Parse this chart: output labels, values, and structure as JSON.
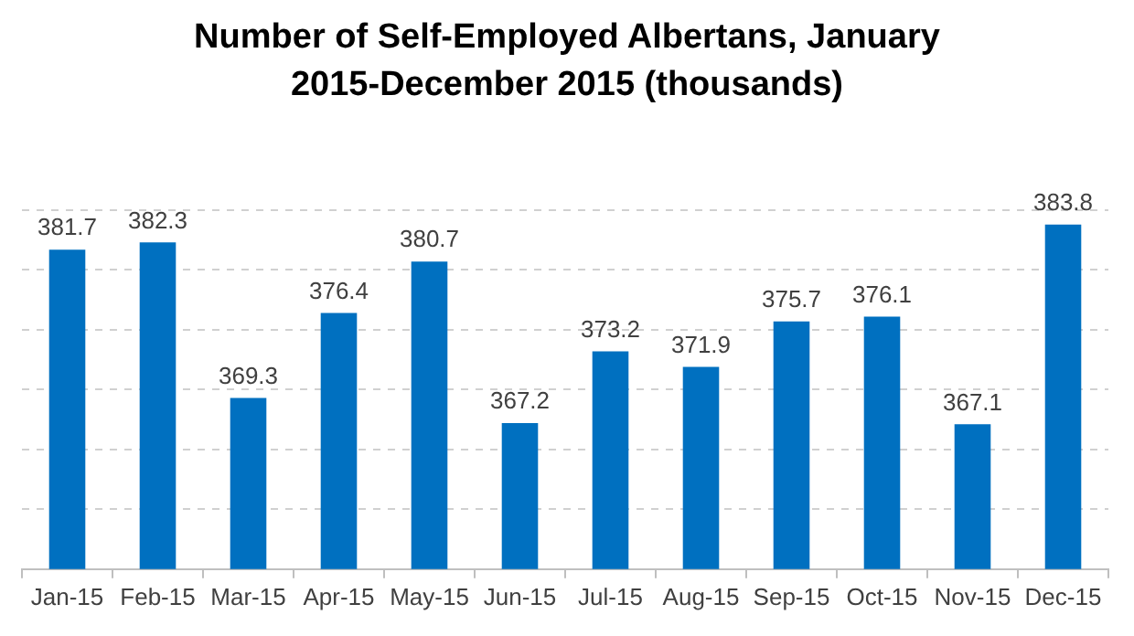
{
  "chart_data": {
    "type": "bar",
    "title": "Number of Self-Employed Albertans, January 2015-December 2015 (thousands)",
    "categories": [
      "Jan-15",
      "Feb-15",
      "Mar-15",
      "Apr-15",
      "May-15",
      "Jun-15",
      "Jul-15",
      "Aug-15",
      "Sep-15",
      "Oct-15",
      "Nov-15",
      "Dec-15"
    ],
    "values": [
      381.7,
      382.3,
      369.3,
      376.4,
      380.7,
      367.2,
      373.2,
      371.9,
      375.7,
      376.1,
      367.1,
      383.8
    ],
    "color": "#0070c0",
    "ylim": [
      355,
      385
    ],
    "yticks": [
      {
        "value": 355,
        "label": null
      },
      {
        "value": 360,
        "label": null
      },
      {
        "value": 365,
        "label": null
      },
      {
        "value": 370,
        "label": null
      },
      {
        "value": 375,
        "label": null
      },
      {
        "value": 380,
        "label": null
      },
      {
        "value": 385,
        "label": null
      }
    ],
    "grid": "y",
    "tick_labels": "x",
    "data_labels": true,
    "legend": false
  }
}
